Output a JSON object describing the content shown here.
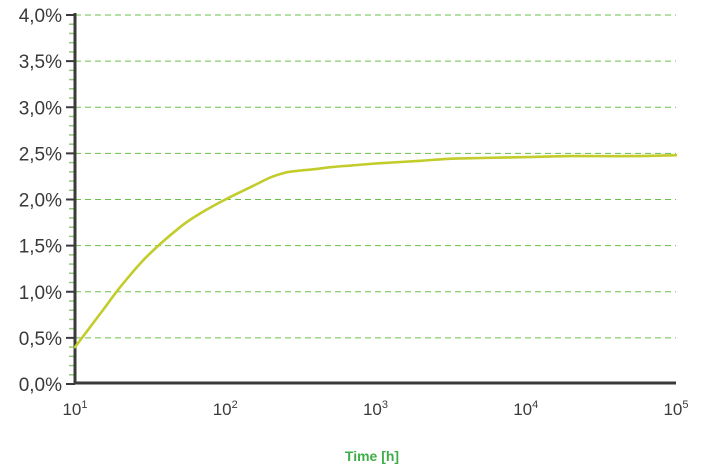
{
  "chart_data": {
    "type": "line",
    "title": "",
    "xlabel": "Time [h]",
    "ylabel": "",
    "x_scale": "log",
    "xlim": [
      10,
      100000
    ],
    "ylim": [
      0,
      4.0
    ],
    "grid": "horizontal dashed",
    "x_ticks": [
      {
        "base": "10",
        "exp": "1"
      },
      {
        "base": "10",
        "exp": "2"
      },
      {
        "base": "10",
        "exp": "3"
      },
      {
        "base": "10",
        "exp": "4"
      },
      {
        "base": "10",
        "exp": "5"
      }
    ],
    "y_ticks": [
      "0,0%",
      "0,5%",
      "1,0%",
      "1,5%",
      "2,0%",
      "2,5%",
      "3,0%",
      "3,5%",
      "4,0%"
    ],
    "y_tick_values": [
      0,
      0.5,
      1.0,
      1.5,
      2.0,
      2.5,
      3.0,
      3.5,
      4.0
    ],
    "series": [
      {
        "color": "#c2cc2a",
        "x": [
          10,
          15,
          20,
          30,
          50,
          70,
          100,
          150,
          200,
          250,
          300,
          400,
          500,
          700,
          1000,
          2000,
          3000,
          5000,
          10000,
          20000,
          50000,
          100000
        ],
        "values": [
          0.4,
          0.78,
          1.05,
          1.38,
          1.7,
          1.86,
          2.0,
          2.14,
          2.24,
          2.29,
          2.31,
          2.33,
          2.35,
          2.37,
          2.39,
          2.42,
          2.44,
          2.45,
          2.46,
          2.47,
          2.47,
          2.48
        ]
      }
    ],
    "colors": {
      "grid": "#6cc04a",
      "axis": "#3a3a3a",
      "minor_tick": "#8fc97a",
      "xlabel": "#3fae49"
    }
  }
}
